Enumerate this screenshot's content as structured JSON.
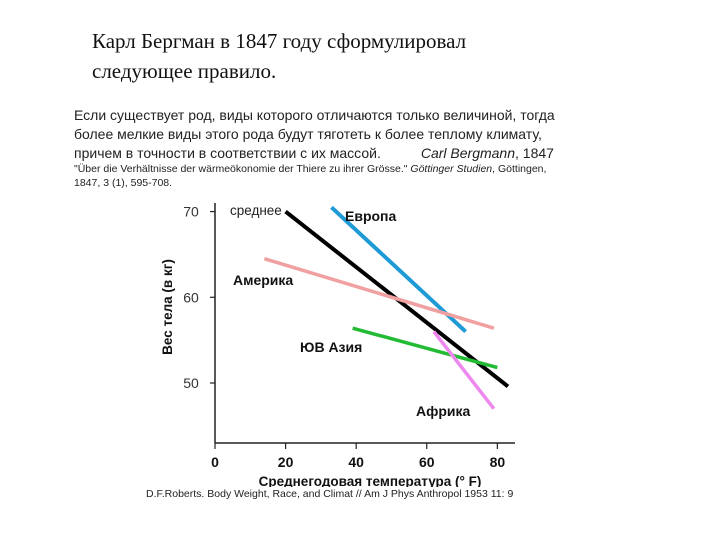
{
  "heading": {
    "line1": "Карл Бергман в 1847 году сформулировал",
    "line2": "следующее правило."
  },
  "rule": {
    "line1": "Если существует род, виды которого отличаются только величиной, тогда",
    "line2": "более мелкие виды этого рода будут тяготеть к более теплому климату,",
    "line3": "причем в точности в соответствии с их массой.",
    "author": "Carl Bergmann",
    "year": ", 1847"
  },
  "citation": {
    "title": "\"Über die Verhältnisse der wärmeökonomie der Thiere zu ihrer Grösse.\"",
    "journal": "Göttinger Studien",
    "place": ", Göttingen,",
    "line2": "1847, 3 (1), 595-708."
  },
  "source": "D.F.Roberts. Body Weight, Race, and Climat // Am J Phys Anthropol 1953 11: 9",
  "chart_data": {
    "type": "line",
    "xlabel": "Среднегодовая температура (° F)",
    "ylabel": "Вес тела (в кг)",
    "xlim": [
      0,
      85
    ],
    "ylim": [
      43,
      71
    ],
    "x_ticks": [
      "0",
      "20",
      "40",
      "60",
      "80"
    ],
    "y_ticks": [
      "50",
      "60",
      "70"
    ],
    "x_tick_values": [
      0,
      20,
      40,
      60,
      80
    ],
    "y_tick_values": [
      50,
      60,
      70
    ],
    "series": [
      {
        "name": "среднее",
        "color": "#000000",
        "x": [
          20,
          83
        ],
        "y": [
          70,
          49.6
        ]
      },
      {
        "name": "Европа",
        "color": "#1e9ad6",
        "x": [
          33,
          71
        ],
        "y": [
          70.5,
          56
        ]
      },
      {
        "name": "Америка",
        "color": "#f0a0a0",
        "x": [
          14,
          79
        ],
        "y": [
          64.5,
          56.4
        ]
      },
      {
        "name": "ЮВ Азия",
        "color": "#22bb33",
        "x": [
          39,
          80
        ],
        "y": [
          56.4,
          51.8
        ]
      },
      {
        "name": "Африка",
        "color": "#ee88ee",
        "x": [
          62,
          79
        ],
        "y": [
          56,
          47
        ]
      }
    ]
  }
}
